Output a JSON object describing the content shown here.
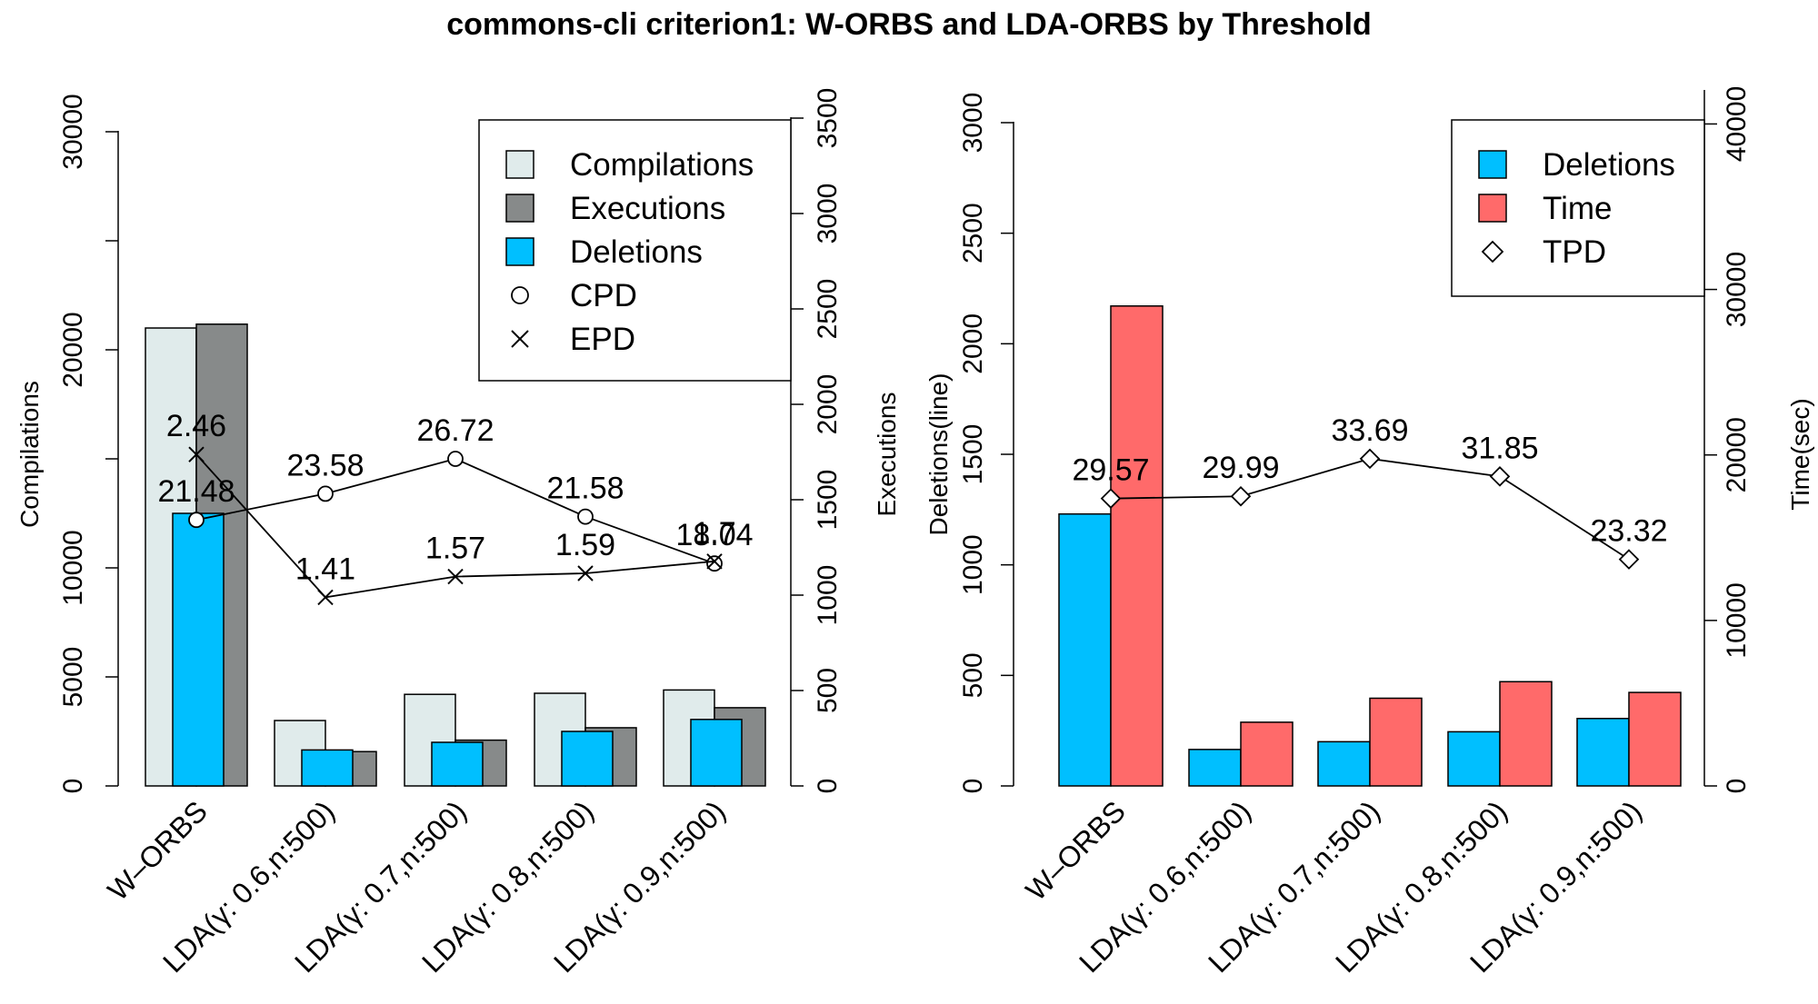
{
  "chart_data": {
    "title": "commons-cli criterion1: W-ORBS and LDA-ORBS by Threshold",
    "categories": [
      "W–ORBS",
      "LDA(γ: 0.6,n:500)",
      "LDA(γ: 0.7,n:500)",
      "LDA(γ: 0.8,n:500)",
      "LDA(γ: 0.9,n:500)"
    ],
    "panels": [
      {
        "type": "bar+line",
        "ylabel_left": "Compilations",
        "ylabel_right": "Executions",
        "ylim_left": [
          0,
          30000
        ],
        "ylim_right": [
          0,
          3500
        ],
        "yticks_left": [
          "0",
          "5000",
          "10000",
          "20000",
          "30000"
        ],
        "yticks_left_values": [
          0,
          5000,
          10000,
          20000,
          30000
        ],
        "yticks_left_minor": [
          15000,
          25000
        ],
        "yticks_right": [
          "0",
          "500",
          "1000",
          "1500",
          "2000",
          "2500",
          "3000",
          "3500"
        ],
        "yticks_right_values": [
          0,
          500,
          1000,
          1500,
          2000,
          2500,
          3000,
          3500
        ],
        "series": [
          {
            "name": "Compilations",
            "kind": "bar",
            "axis": "left",
            "color": "#e0ebeb",
            "values": [
              21000,
              3000,
              4200,
              4250,
              4400
            ]
          },
          {
            "name": "Executions",
            "kind": "bar",
            "axis": "right",
            "color": "#878a8a",
            "values": [
              2420,
              180,
              240,
              305,
              410
            ]
          },
          {
            "name": "Deletions",
            "kind": "bar",
            "axis": "left",
            "color": "#00bfff",
            "values": [
              12500,
              1650,
              2000,
              2500,
              3050
            ]
          },
          {
            "name": "CPD",
            "kind": "line",
            "marker": "circle",
            "axis": "left",
            "values": [
              12200,
              13400,
              15000,
              12350,
              10200
            ],
            "labels": [
              "21.48",
              "23.58",
              "26.72",
              "21.58",
              "18.04"
            ]
          },
          {
            "name": "EPD",
            "kind": "line",
            "marker": "x",
            "axis": "left",
            "values": [
              15200,
              8650,
              9600,
              9750,
              10300
            ],
            "labels": [
              "2.46",
              "1.41",
              "1.57",
              "1.59",
              "1.7"
            ]
          }
        ],
        "legend": {
          "position": "top-right",
          "items": [
            "Compilations",
            "Executions",
            "Deletions",
            "CPD",
            "EPD"
          ]
        }
      },
      {
        "type": "bar+line",
        "ylabel_left": "Deletions(line)",
        "ylabel_right": "Time(sec)",
        "ylim_left": [
          0,
          3000
        ],
        "ylim_right": [
          0,
          42000
        ],
        "yticks_left": [
          "0",
          "500",
          "1000",
          "1500",
          "2000",
          "2500",
          "3000"
        ],
        "yticks_left_values": [
          0,
          500,
          1000,
          1500,
          2000,
          2500,
          3000
        ],
        "yticks_right": [
          "0",
          "10000",
          "20000",
          "30000",
          "40000"
        ],
        "yticks_right_values": [
          0,
          10000,
          20000,
          30000,
          40000
        ],
        "series": [
          {
            "name": "Deletions",
            "kind": "bar",
            "axis": "left",
            "color": "#00bfff",
            "values": [
              1230,
              165,
              200,
              245,
              305
            ]
          },
          {
            "name": "Time",
            "kind": "bar",
            "axis": "right",
            "color": "#ff6a6a",
            "values": [
              29000,
              3850,
              5300,
              6300,
              5650
            ]
          },
          {
            "name": "TPD",
            "kind": "line",
            "marker": "diamond",
            "axis": "left",
            "values": [
              1300,
              1310,
              1480,
              1400,
              1025
            ],
            "labels": [
              "29.57",
              "29.99",
              "33.69",
              "31.85",
              "23.32"
            ]
          }
        ],
        "legend": {
          "position": "top-right",
          "items": [
            "Deletions",
            "Time",
            "TPD"
          ]
        }
      }
    ]
  }
}
